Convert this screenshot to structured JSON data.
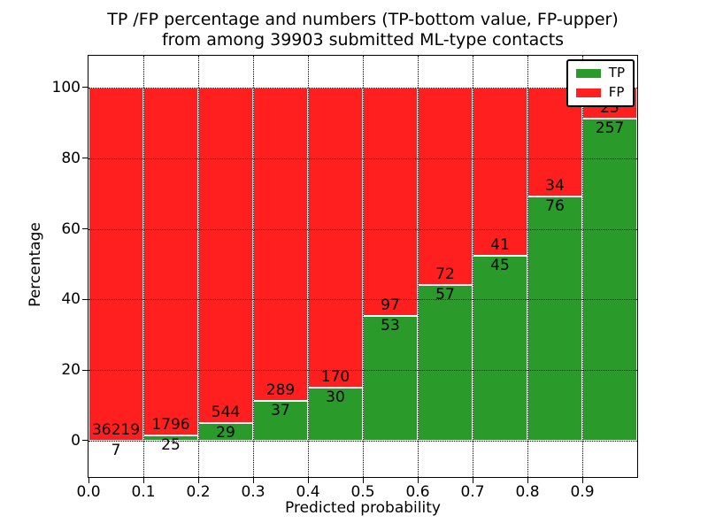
{
  "chart_data": {
    "type": "bar",
    "variant": "stacked-percentage-histogram",
    "title_line1": "TP /FP percentage and numbers (TP-bottom value, FP-upper)",
    "title_line2": "from among 39903 submitted ML-type contacts",
    "total_submitted": 39903,
    "xlabel": "Predicted probability",
    "ylabel": "Percentage",
    "x_tick_labels": [
      "0.0",
      "0.1",
      "0.2",
      "0.3",
      "0.4",
      "0.5",
      "0.6",
      "0.7",
      "0.8",
      "0.9"
    ],
    "y_ticks": [
      0,
      20,
      40,
      60,
      80,
      100
    ],
    "y_tick_labels": [
      "0",
      "20",
      "40",
      "60",
      "80",
      "100"
    ],
    "xlim": [
      0.0,
      1.0
    ],
    "ylim": [
      -10.3,
      109.0
    ],
    "bin_width": 0.1,
    "grid": {
      "style": "dotted",
      "axes": "both",
      "drawn_above_bars": true
    },
    "bar_edge_color": "#ffffff",
    "series": [
      {
        "name": "TP",
        "color": "#2a9a2a",
        "counts": [
          7,
          25,
          29,
          37,
          30,
          53,
          57,
          45,
          76,
          257
        ]
      },
      {
        "name": "FP",
        "color": "#ff1f1f",
        "counts": [
          36219,
          1796,
          544,
          289,
          170,
          97,
          72,
          41,
          34,
          25
        ]
      }
    ],
    "tp_percent_heights": [
      0.02,
      1.37,
      5.06,
      11.35,
      15.0,
      35.33,
      44.19,
      52.33,
      69.09,
      91.13
    ],
    "value_label_rule": "FP count printed just above the TP/FP boundary, TP count just below it",
    "legend": {
      "position": "upper-right",
      "entries": [
        {
          "label": "TP",
          "color": "#2a9a2a"
        },
        {
          "label": "FP",
          "color": "#ff1f1f"
        }
      ]
    }
  }
}
